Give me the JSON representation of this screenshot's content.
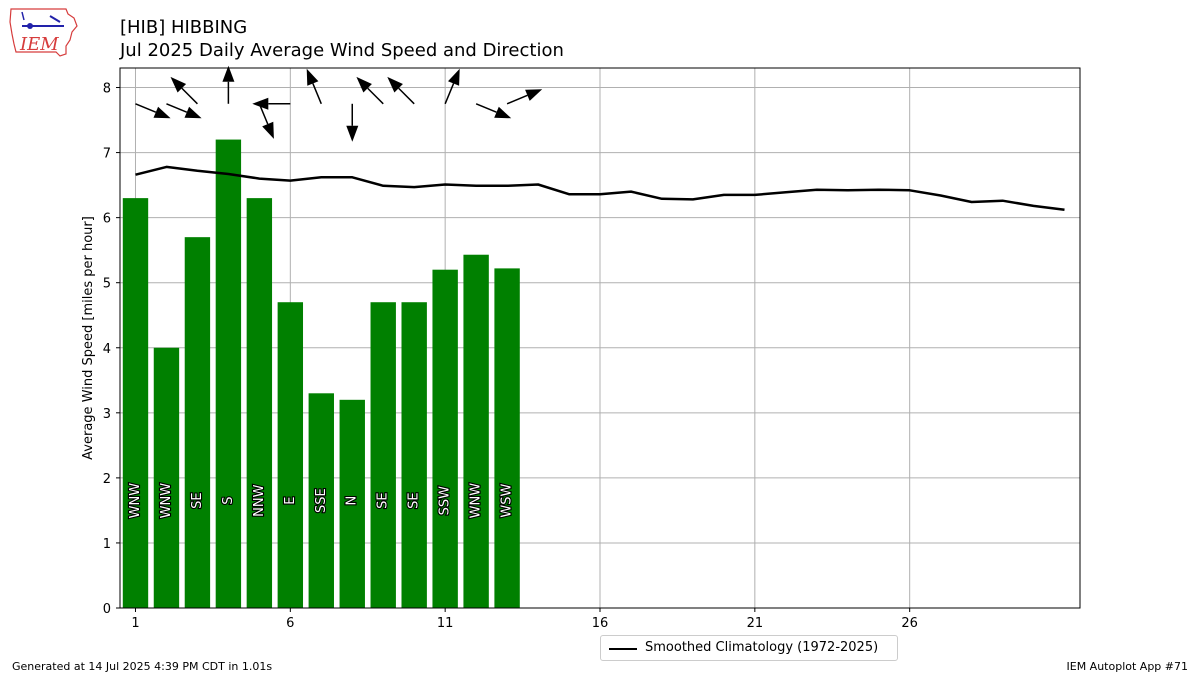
{
  "header": {
    "title_line1": "[HIB] HIBBING",
    "title_line2": "Jul 2025 Daily Average Wind Speed and Direction"
  },
  "logo": {
    "text": "IEM",
    "icon": "iem-logo-icon"
  },
  "footer": {
    "generated": "Generated at 14 Jul 2025 4:39 PM CDT in 1.01s",
    "app": "IEM Autoplot App #71"
  },
  "colors": {
    "bar": "#008000",
    "line": "#000000",
    "grid": "#b0b0b0"
  },
  "chart_data": {
    "type": "bar",
    "ylabel": "Average Wind Speed [miles per hour]",
    "xlabel": "",
    "ylim": [
      0,
      8.3
    ],
    "xlim": [
      0.5,
      31.5
    ],
    "yticks": [
      0,
      1,
      2,
      3,
      4,
      5,
      6,
      7,
      8
    ],
    "xticks": [
      1,
      6,
      11,
      16,
      21,
      26
    ],
    "grid": true,
    "legend_position": "bottom-center",
    "days": [
      1,
      2,
      3,
      4,
      5,
      6,
      7,
      8,
      9,
      10,
      11,
      12,
      13
    ],
    "values": [
      6.3,
      4.0,
      5.7,
      7.2,
      6.3,
      4.7,
      3.3,
      3.2,
      4.7,
      4.7,
      5.2,
      5.43,
      5.22
    ],
    "directions": [
      "WNW",
      "WNW",
      "SE",
      "S",
      "NNW",
      "E",
      "SSE",
      "N",
      "SE",
      "SE",
      "SSW",
      "WNW",
      "WSW"
    ],
    "direction_degrees": [
      292.5,
      292.5,
      135,
      180,
      337.5,
      90,
      157.5,
      0,
      135,
      135,
      202.5,
      292.5,
      247.5
    ],
    "series": [
      {
        "name": "Smoothed Climatology (1972-2025)",
        "type": "line",
        "x": [
          1,
          2,
          3,
          4,
          5,
          6,
          7,
          8,
          9,
          10,
          11,
          12,
          13,
          14,
          15,
          16,
          17,
          18,
          19,
          20,
          21,
          22,
          23,
          24,
          25,
          26,
          27,
          28,
          29,
          30,
          31
        ],
        "values": [
          6.66,
          6.78,
          6.72,
          6.67,
          6.6,
          6.57,
          6.62,
          6.62,
          6.49,
          6.47,
          6.51,
          6.49,
          6.49,
          6.51,
          6.36,
          6.36,
          6.4,
          6.29,
          6.28,
          6.35,
          6.35,
          6.39,
          6.43,
          6.42,
          6.43,
          6.42,
          6.34,
          6.24,
          6.26,
          6.18,
          6.12
        ]
      }
    ]
  }
}
